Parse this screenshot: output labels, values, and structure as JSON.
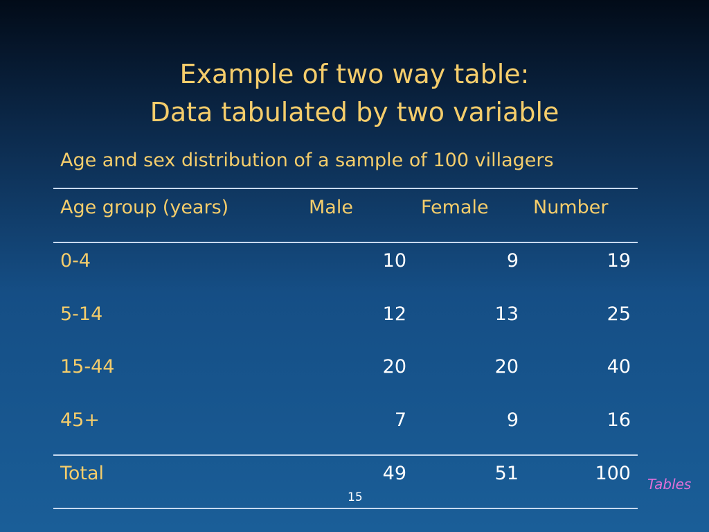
{
  "slide": {
    "title_lines": [
      "Example of two way table:",
      "Data tabulated by two variable"
    ],
    "subtitle": "Age and sex distribution of a sample of 100 villagers",
    "table": {
      "headers": [
        "Age group (years)",
        "Male",
        "Female",
        "Number"
      ],
      "rows": [
        [
          "0-4",
          "10",
          "9",
          "19"
        ],
        [
          "5-14",
          "12",
          "13",
          "25"
        ],
        [
          "15-44",
          "20",
          "20",
          "40"
        ],
        [
          "45+",
          "7",
          "9",
          "16"
        ]
      ],
      "total": [
        "Total",
        "49",
        "51",
        "100"
      ]
    },
    "page_number": "15",
    "section_label": "Tables",
    "colors": {
      "text_accent": "#f5cd6b",
      "section_label": "#e070d8",
      "background_bottom": "#1a5e98"
    }
  }
}
